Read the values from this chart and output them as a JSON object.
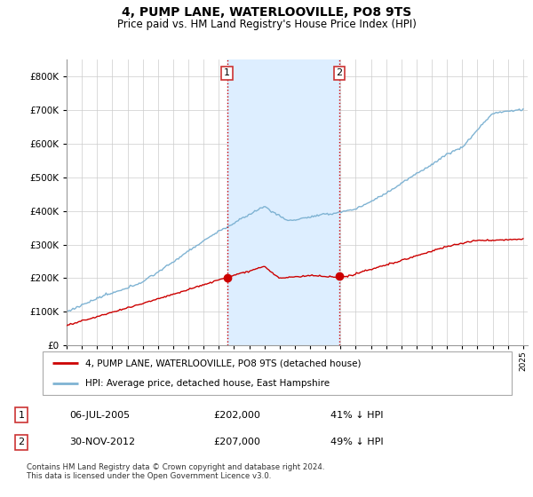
{
  "title": "4, PUMP LANE, WATERLOOVILLE, PO8 9TS",
  "subtitle": "Price paid vs. HM Land Registry's House Price Index (HPI)",
  "legend_line1": "4, PUMP LANE, WATERLOOVILLE, PO8 9TS (detached house)",
  "legend_line2": "HPI: Average price, detached house, East Hampshire",
  "transaction1_date": "06-JUL-2005",
  "transaction1_price": 202000,
  "transaction1_label": "41% ↓ HPI",
  "transaction2_date": "30-NOV-2012",
  "transaction2_price": 207000,
  "transaction2_label": "49% ↓ HPI",
  "footer": "Contains HM Land Registry data © Crown copyright and database right 2024.\nThis data is licensed under the Open Government Licence v3.0.",
  "red_color": "#cc0000",
  "blue_color": "#7fb3d3",
  "shaded_color": "#ddeeff",
  "vline_color": "#cc0000",
  "ylim_min": 0,
  "ylim_max": 850000,
  "start_year": 1995,
  "end_year": 2025,
  "transaction1_year": 2005.542,
  "transaction2_year": 2012.917
}
